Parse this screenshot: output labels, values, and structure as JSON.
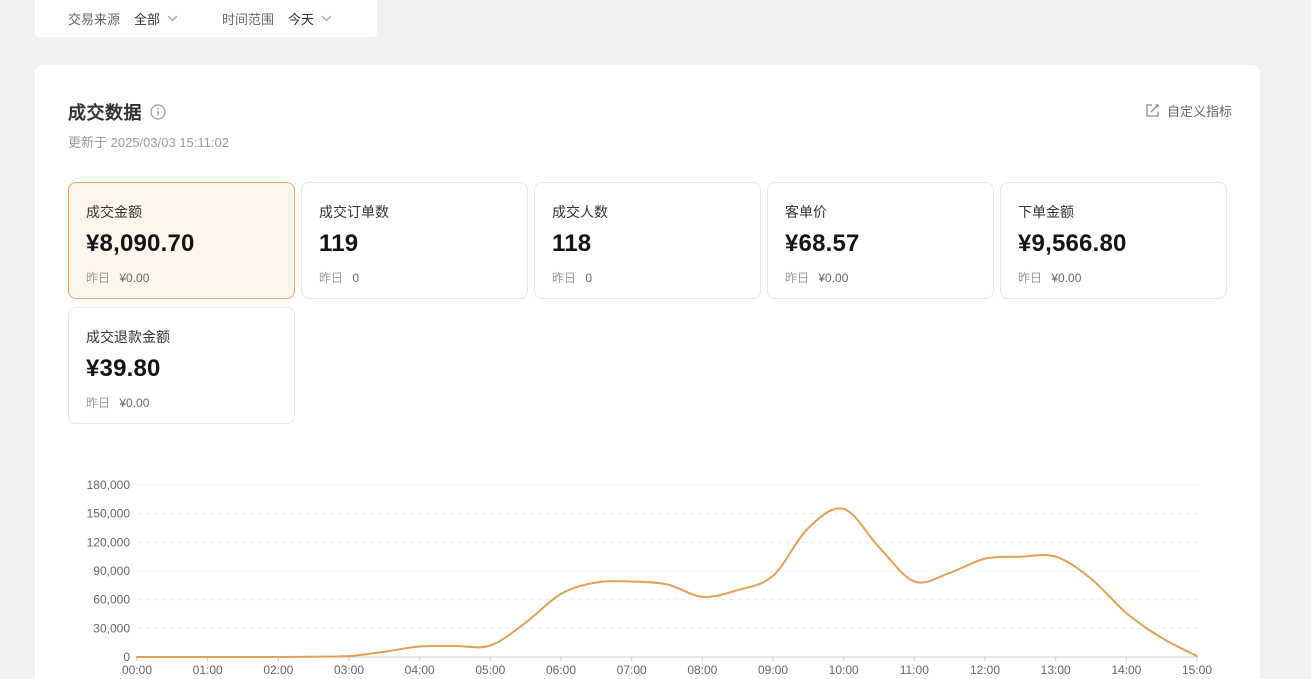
{
  "filter_bar": {
    "source_label": "交易来源",
    "source_value": "全部",
    "time_label": "时间范围",
    "time_value": "今天"
  },
  "panel": {
    "title": "成交数据",
    "updated_text": "更新于 2025/03/03 15:11:02",
    "customize_button": "自定义指标"
  },
  "metric_cards": [
    {
      "label": "成交金额",
      "value": "¥8,090.70",
      "yesterday_label": "昨日",
      "yesterday_value": "¥0.00",
      "selected": true
    },
    {
      "label": "成交订单数",
      "value": "119",
      "yesterday_label": "昨日",
      "yesterday_value": "0",
      "selected": false
    },
    {
      "label": "成交人数",
      "value": "118",
      "yesterday_label": "昨日",
      "yesterday_value": "0",
      "selected": false
    },
    {
      "label": "客单价",
      "value": "¥68.57",
      "yesterday_label": "昨日",
      "yesterday_value": "¥0.00",
      "selected": false
    },
    {
      "label": "下单金额",
      "value": "¥9,566.80",
      "yesterday_label": "昨日",
      "yesterday_value": "¥0.00",
      "selected": false
    },
    {
      "label": "成交退款金额",
      "value": "¥39.80",
      "yesterday_label": "昨日",
      "yesterday_value": "¥0.00",
      "selected": false
    }
  ],
  "chart_data": {
    "type": "line",
    "title": "",
    "xlabel": "",
    "ylabel": "",
    "x": [
      "00:00",
      "00:30",
      "01:00",
      "01:30",
      "02:00",
      "02:30",
      "03:00",
      "03:30",
      "04:00",
      "04:30",
      "05:00",
      "05:30",
      "06:00",
      "06:30",
      "07:00",
      "07:30",
      "08:00",
      "08:30",
      "09:00",
      "09:30",
      "10:00",
      "10:30",
      "11:00",
      "11:30",
      "12:00",
      "12:30",
      "13:00",
      "13:30",
      "14:00",
      "14:30",
      "15:00"
    ],
    "values": [
      0,
      0,
      0,
      0,
      0,
      300,
      1000,
      5500,
      11000,
      11500,
      12000,
      36000,
      66000,
      78000,
      79000,
      76000,
      63000,
      70000,
      85000,
      135000,
      155000,
      115000,
      79000,
      88000,
      103000,
      105000,
      105000,
      82000,
      46000,
      20000,
      1000
    ],
    "x_tick_labels": [
      "00:00",
      "01:00",
      "02:00",
      "03:00",
      "04:00",
      "05:00",
      "06:00",
      "07:00",
      "08:00",
      "09:00",
      "10:00",
      "11:00",
      "12:00",
      "13:00",
      "14:00",
      "15:00"
    ],
    "y_ticks": [
      0,
      30000,
      60000,
      90000,
      120000,
      150000,
      180000
    ],
    "ylim": [
      0,
      180000
    ],
    "grid": true,
    "legend": "none",
    "line_color": "#e1a158",
    "grid_color": "#ebebeb",
    "axis_color": "#cccccc",
    "tick_text_color": "#666666"
  },
  "colors": {
    "page_bg": "#f1f1f2",
    "panel_bg": "#ffffff",
    "selected_card_bg": "#fdf6ec",
    "selected_card_border": "#e9a765",
    "card_border": "#e7e7e7",
    "accent": "#e1a158"
  }
}
